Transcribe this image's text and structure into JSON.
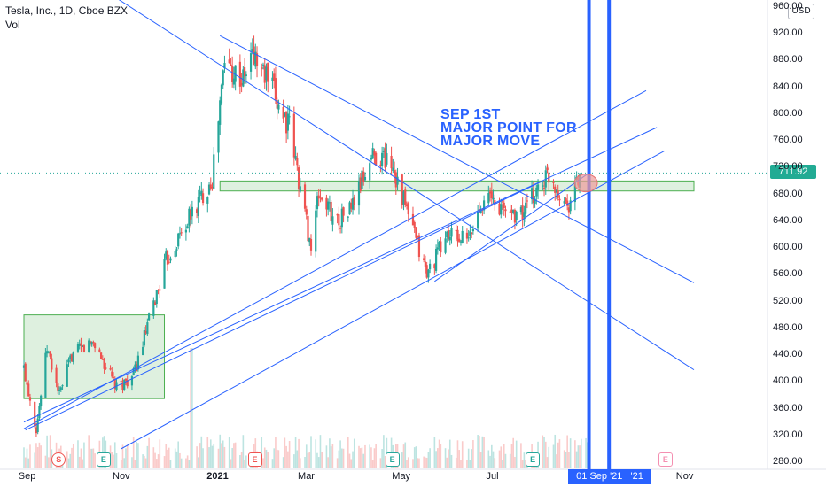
{
  "header": {
    "symbol": "Tesla, Inc., 1D, Cboe BZX",
    "volume_label": "Vol",
    "currency": "USD"
  },
  "annotation": {
    "lines": [
      "SEP 1ST",
      "MAJOR POINT FOR",
      "MAJOR MOVE"
    ]
  },
  "last_price": "711.92",
  "crosshair_date": "01 Sep '21",
  "crosshair_date_2": "'21",
  "events": [
    "S",
    "E",
    "E",
    "E",
    "E",
    "E"
  ],
  "colors": {
    "up": "#26a69a",
    "down": "#ef5350",
    "trendline": "#2962ff",
    "zone_fill": "#c8e6c9",
    "zone_border": "#4caf50",
    "circle": "#ef9a9a"
  },
  "chart_data": {
    "type": "candlestick",
    "title": "Tesla, Inc., 1D, Cboe BZX",
    "ylim": [
      270,
      960
    ],
    "y_ticks": [
      "960.00",
      "920.00",
      "880.00",
      "840.00",
      "800.00",
      "760.00",
      "720.00",
      "680.00",
      "640.00",
      "600.00",
      "560.00",
      "520.00",
      "480.00",
      "440.00",
      "400.00",
      "360.00",
      "320.00",
      "280.00"
    ],
    "x_ticks": [
      "Sep",
      "Nov",
      "2021",
      "Mar",
      "May",
      "Jul",
      "Sep",
      "Nov"
    ],
    "close_path": [
      [
        "2020-08-31",
        420
      ],
      [
        "2020-09-08",
        330
      ],
      [
        "2020-09-15",
        450
      ],
      [
        "2020-09-23",
        380
      ],
      [
        "2020-10-01",
        440
      ],
      [
        "2020-10-15",
        460
      ],
      [
        "2020-10-30",
        390
      ],
      [
        "2020-11-10",
        410
      ],
      [
        "2020-11-20",
        490
      ],
      [
        "2020-12-01",
        580
      ],
      [
        "2020-12-15",
        640
      ],
      [
        "2020-12-31",
        705
      ],
      [
        "2021-01-08",
        880
      ],
      [
        "2021-01-20",
        850
      ],
      [
        "2021-01-26",
        890
      ],
      [
        "2021-02-05",
        850
      ],
      [
        "2021-02-19",
        780
      ],
      [
        "2021-03-05",
        600
      ],
      [
        "2021-03-10",
        680
      ],
      [
        "2021-03-22",
        640
      ],
      [
        "2021-03-31",
        660
      ],
      [
        "2021-04-14",
        740
      ],
      [
        "2021-04-26",
        730
      ],
      [
        "2021-05-04",
        670
      ],
      [
        "2021-05-19",
        560
      ],
      [
        "2021-06-01",
        620
      ],
      [
        "2021-06-15",
        610
      ],
      [
        "2021-06-25",
        680
      ],
      [
        "2021-07-06",
        660
      ],
      [
        "2021-07-20",
        650
      ],
      [
        "2021-07-30",
        690
      ],
      [
        "2021-08-06",
        710
      ],
      [
        "2021-08-18",
        665
      ],
      [
        "2021-08-27",
        711.92
      ]
    ],
    "zones": [
      {
        "from": "2021-01-05",
        "to": "2021-11-08",
        "low": 685,
        "high": 700
      },
      {
        "from": "2020-08-31",
        "to": "2020-11-30",
        "low": 375,
        "high": 500
      }
    ],
    "vertical_markers": [
      "2021-09-01",
      "2021-09-14"
    ]
  }
}
